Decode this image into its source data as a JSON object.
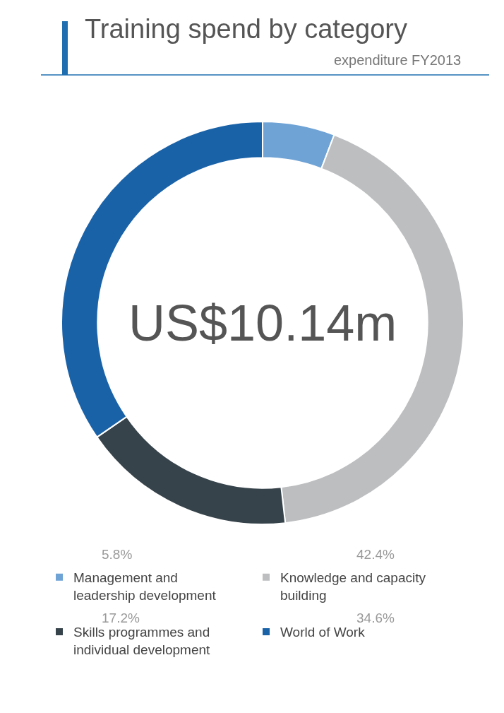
{
  "chart_data": {
    "type": "donut",
    "title": "Training spend by category",
    "subtitle": "expenditure FY2013",
    "categories": [
      "Management and leadership development",
      "Knowledge and capacity building",
      "Skills programmes and individual development",
      "World of Work"
    ],
    "values": [
      5.8,
      42.4,
      17.2,
      34.6
    ],
    "colors": [
      "#6fa3d6",
      "#bdbec0",
      "#37434b",
      "#1a62a8"
    ],
    "value_labels": [
      "5.8%",
      "42.4%",
      "17.2%",
      "34.6%"
    ],
    "annotations": [
      "US$10.14m"
    ],
    "legend": "bottom"
  }
}
